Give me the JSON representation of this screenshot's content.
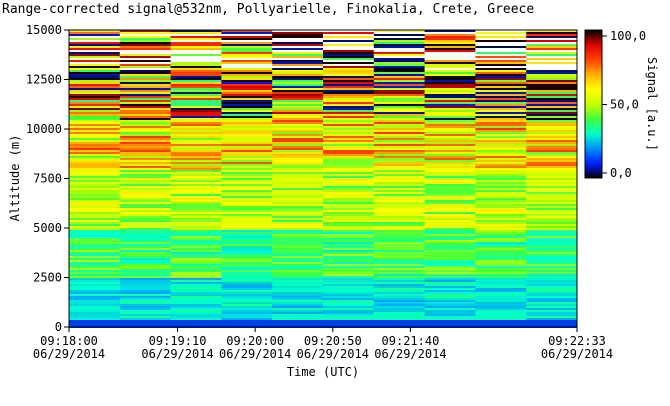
{
  "chart_data": {
    "type": "heatmap",
    "title": "Range-corrected signal@532nm, Pollyarielle, Finokalia, Crete, Greece",
    "xlabel": "Time (UTC)",
    "ylabel": "Altitude (m)",
    "colorbar_label": "Signal [a.u.]",
    "x_ticks": [
      {
        "time": "09:18:00",
        "date": "06/29/2014"
      },
      {
        "time": "09:19:10",
        "date": "06/29/2014"
      },
      {
        "time": "09:20:00",
        "date": "06/29/2014"
      },
      {
        "time": "09:20:50",
        "date": "06/29/2014"
      },
      {
        "time": "09:21:40",
        "date": "06/29/2014"
      },
      {
        "time": "09:22:33",
        "date": "06/29/2014"
      }
    ],
    "x_tick_fractions": [
      0,
      0.2137,
      0.3665,
      0.5193,
      0.6721,
      1.0
    ],
    "y_ticks": [
      0,
      2500,
      5000,
      7500,
      10000,
      12500,
      15000
    ],
    "ylim": [
      0,
      15000
    ],
    "colorbar_ticks": [
      "0,0",
      "50,0",
      "100,0"
    ],
    "colorbar_range": [
      0,
      100
    ],
    "n_time_columns": 10,
    "colorscale": [
      "#000000",
      "#0020ff",
      "#0090ff",
      "#00ffcc",
      "#40ff40",
      "#c8ff00",
      "#ffff00",
      "#ffb000",
      "#ff4000",
      "#e00000",
      "#000000"
    ],
    "profile_description": {
      "near_surface_blue_below_m": 2500,
      "mixed_green_yellow_m": [
        5000,
        10000
      ],
      "noisy_bands_above_m": 10000
    }
  }
}
